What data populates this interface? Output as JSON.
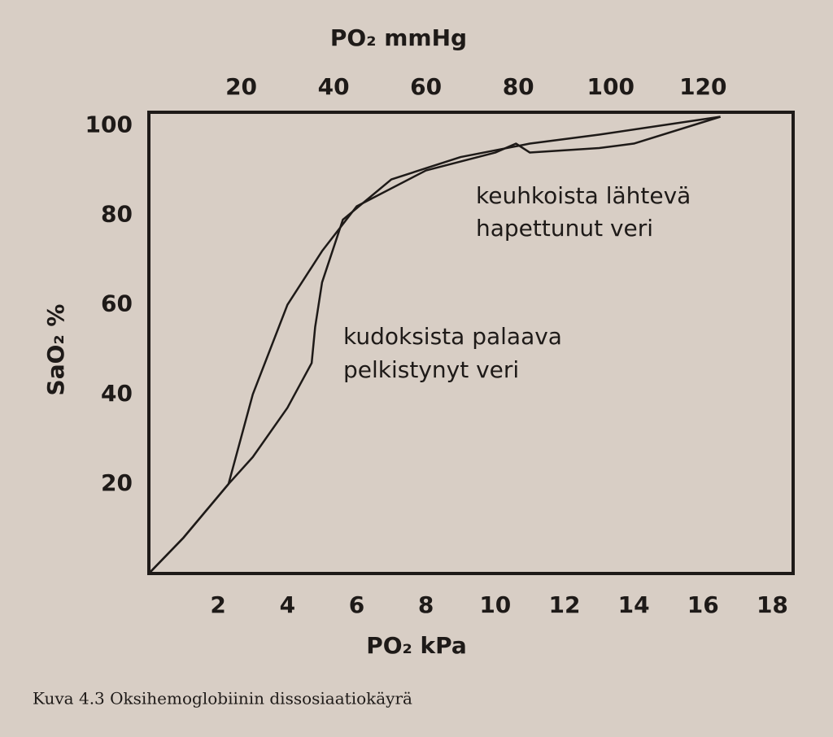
{
  "chart_data": {
    "type": "line",
    "top_axis_label": "PO₂ mmHg",
    "xlabel": "PO₂ kPa",
    "ylabel": "SaO₂ %",
    "caption": "Kuva 4.3 Oksihemoglobiinin dissosiaatiokäyrä",
    "annotations": [
      "keuhkoista lähtevä",
      "hapettunut veri",
      "kudoksista palaava",
      "pelkistynyt veri"
    ],
    "xlim": [
      0,
      18.6
    ],
    "xticks": [
      2,
      4,
      6,
      8,
      10,
      12,
      14,
      16,
      18
    ],
    "x2lim": [
      0,
      139.5
    ],
    "x2ticks": [
      20,
      40,
      60,
      80,
      100,
      120
    ],
    "ylim": [
      0,
      103
    ],
    "yticks": [
      20,
      40,
      60,
      80,
      100
    ],
    "color": "#1e1a18",
    "series": [
      {
        "x": [
          0,
          1,
          2.3,
          3,
          4,
          4.7,
          4.8,
          5,
          5.6,
          7,
          9,
          11,
          13,
          16.5
        ],
        "values": [
          0,
          8,
          20,
          26,
          37,
          47,
          55,
          65,
          79,
          88,
          93,
          96,
          98,
          102
        ]
      },
      {
        "x": [
          0,
          1,
          2.3,
          3,
          4,
          5,
          6,
          8,
          10,
          10.6,
          11,
          13,
          14,
          16.5
        ],
        "values": [
          0,
          8,
          20,
          40,
          60,
          72,
          82,
          90,
          94,
          96,
          94,
          95,
          96,
          102
        ]
      }
    ]
  }
}
